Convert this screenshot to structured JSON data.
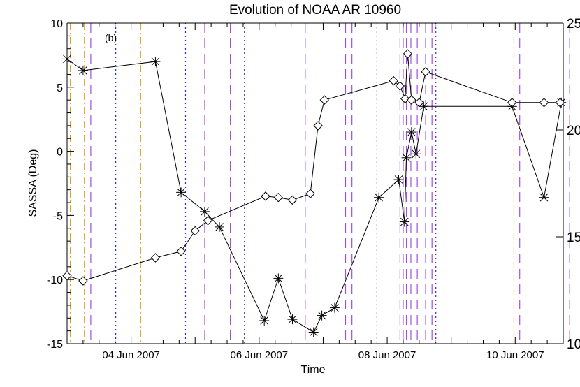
{
  "chart_data": {
    "type": "line",
    "title": "Evolution of NOAA AR 10960",
    "xlabel": "Time",
    "ylabel": "SASSA (Deg)",
    "panel_label": "(b)",
    "x_range_days": [
      3.0,
      10.75
    ],
    "x_ticks": [
      {
        "value": 3.0,
        "label": ""
      },
      {
        "value": 4.0,
        "label": "04 Jun 2007"
      },
      {
        "value": 5.0,
        "label": ""
      },
      {
        "value": 6.0,
        "label": "06 Jun 2007"
      },
      {
        "value": 7.0,
        "label": ""
      },
      {
        "value": 8.0,
        "label": "08 Jun 2007"
      },
      {
        "value": 9.0,
        "label": ""
      },
      {
        "value": 10.0,
        "label": "10 Jun 2007"
      }
    ],
    "ylim": [
      -15,
      10
    ],
    "y_ticks": [
      "10",
      "5",
      "0",
      "-5",
      "-10",
      "-15"
    ],
    "y2lim": [
      10,
      25
    ],
    "y2_ticks": [
      "25",
      "20",
      "15",
      "10"
    ],
    "grid": false,
    "series": [
      {
        "marker": "asterisk",
        "axis": "left",
        "x": [
          3.0,
          3.25,
          4.38,
          4.78,
          5.15,
          5.38,
          6.08,
          6.3,
          6.52,
          6.85,
          6.98,
          7.18,
          7.87,
          8.18,
          8.27,
          8.3,
          8.38,
          8.45,
          8.57,
          9.95,
          10.45,
          10.72
        ],
        "y": [
          7.2,
          6.3,
          7.0,
          -3.2,
          -4.7,
          -5.9,
          -13.2,
          -9.9,
          -13.1,
          -14.1,
          -12.8,
          -12.2,
          -3.6,
          -2.2,
          -5.5,
          -0.5,
          1.5,
          -0.2,
          3.5,
          3.5,
          -3.6,
          3.8
        ],
        "values": [
          7.2,
          6.3,
          7.0,
          -3.2,
          -4.7,
          -5.9,
          -13.2,
          -9.9,
          -13.1,
          -14.1,
          -12.8,
          -12.2,
          -3.6,
          -2.2,
          -5.5,
          -0.5,
          1.5,
          -0.2,
          3.5,
          3.5,
          -3.6,
          3.8
        ]
      },
      {
        "marker": "diamond",
        "axis": "left",
        "x": [
          3.0,
          3.25,
          4.38,
          4.78,
          5.0,
          5.2,
          6.1,
          6.3,
          6.52,
          6.8,
          6.92,
          7.02,
          8.1,
          8.2,
          8.28,
          8.32,
          8.38,
          8.5,
          8.6,
          9.95,
          10.45,
          10.7
        ],
        "y": [
          -9.7,
          -10.1,
          -8.3,
          -7.8,
          -6.2,
          -5.4,
          -3.5,
          -3.6,
          -3.8,
          -3.3,
          2.0,
          4.0,
          5.5,
          5.1,
          4.1,
          7.6,
          4.0,
          3.8,
          6.2,
          3.8,
          3.8,
          3.8
        ],
        "values": [
          -9.7,
          -10.1,
          -8.3,
          -7.8,
          -6.2,
          -5.4,
          -3.5,
          -3.6,
          -3.8,
          -3.3,
          2.0,
          4.0,
          5.5,
          5.1,
          4.1,
          7.6,
          4.0,
          3.8,
          6.2,
          3.8,
          3.8,
          3.8
        ]
      }
    ],
    "event_lines": [
      {
        "x": 3.05,
        "style": "dashdot",
        "color": "#e8a020"
      },
      {
        "x": 3.27,
        "style": "dashdot",
        "color": "#e8a020"
      },
      {
        "x": 3.37,
        "style": "dashed",
        "color": "#a050e0"
      },
      {
        "x": 3.76,
        "style": "dotted",
        "color": "#3030c0"
      },
      {
        "x": 4.15,
        "style": "dashdot",
        "color": "#e8a020"
      },
      {
        "x": 4.85,
        "style": "dotted",
        "color": "#3030c0"
      },
      {
        "x": 5.15,
        "style": "dashed",
        "color": "#a050e0"
      },
      {
        "x": 5.55,
        "style": "dashed",
        "color": "#a050e0"
      },
      {
        "x": 5.77,
        "style": "dotted",
        "color": "#3030c0"
      },
      {
        "x": 6.72,
        "style": "dashed",
        "color": "#a050e0"
      },
      {
        "x": 7.35,
        "style": "dashed",
        "color": "#a050e0"
      },
      {
        "x": 7.45,
        "style": "dashed",
        "color": "#a050e0"
      },
      {
        "x": 7.84,
        "style": "dotted",
        "color": "#3030c0"
      },
      {
        "x": 8.2,
        "style": "dashed",
        "color": "#a050e0"
      },
      {
        "x": 8.25,
        "style": "dashed",
        "color": "#a050e0"
      },
      {
        "x": 8.3,
        "style": "dashed",
        "color": "#a050e0"
      },
      {
        "x": 8.37,
        "style": "dashed",
        "color": "#a050e0"
      },
      {
        "x": 8.47,
        "style": "dashed",
        "color": "#a050e0"
      },
      {
        "x": 8.6,
        "style": "dashed",
        "color": "#a050e0"
      },
      {
        "x": 8.7,
        "style": "dashed",
        "color": "#a050e0"
      },
      {
        "x": 8.76,
        "style": "dotted",
        "color": "#3030c0"
      },
      {
        "x": 9.98,
        "style": "dashdot",
        "color": "#e8a020"
      },
      {
        "x": 10.07,
        "style": "dashed",
        "color": "#a050e0"
      },
      {
        "x": 10.85,
        "style": "dashed",
        "color": "#a050e0"
      }
    ]
  }
}
